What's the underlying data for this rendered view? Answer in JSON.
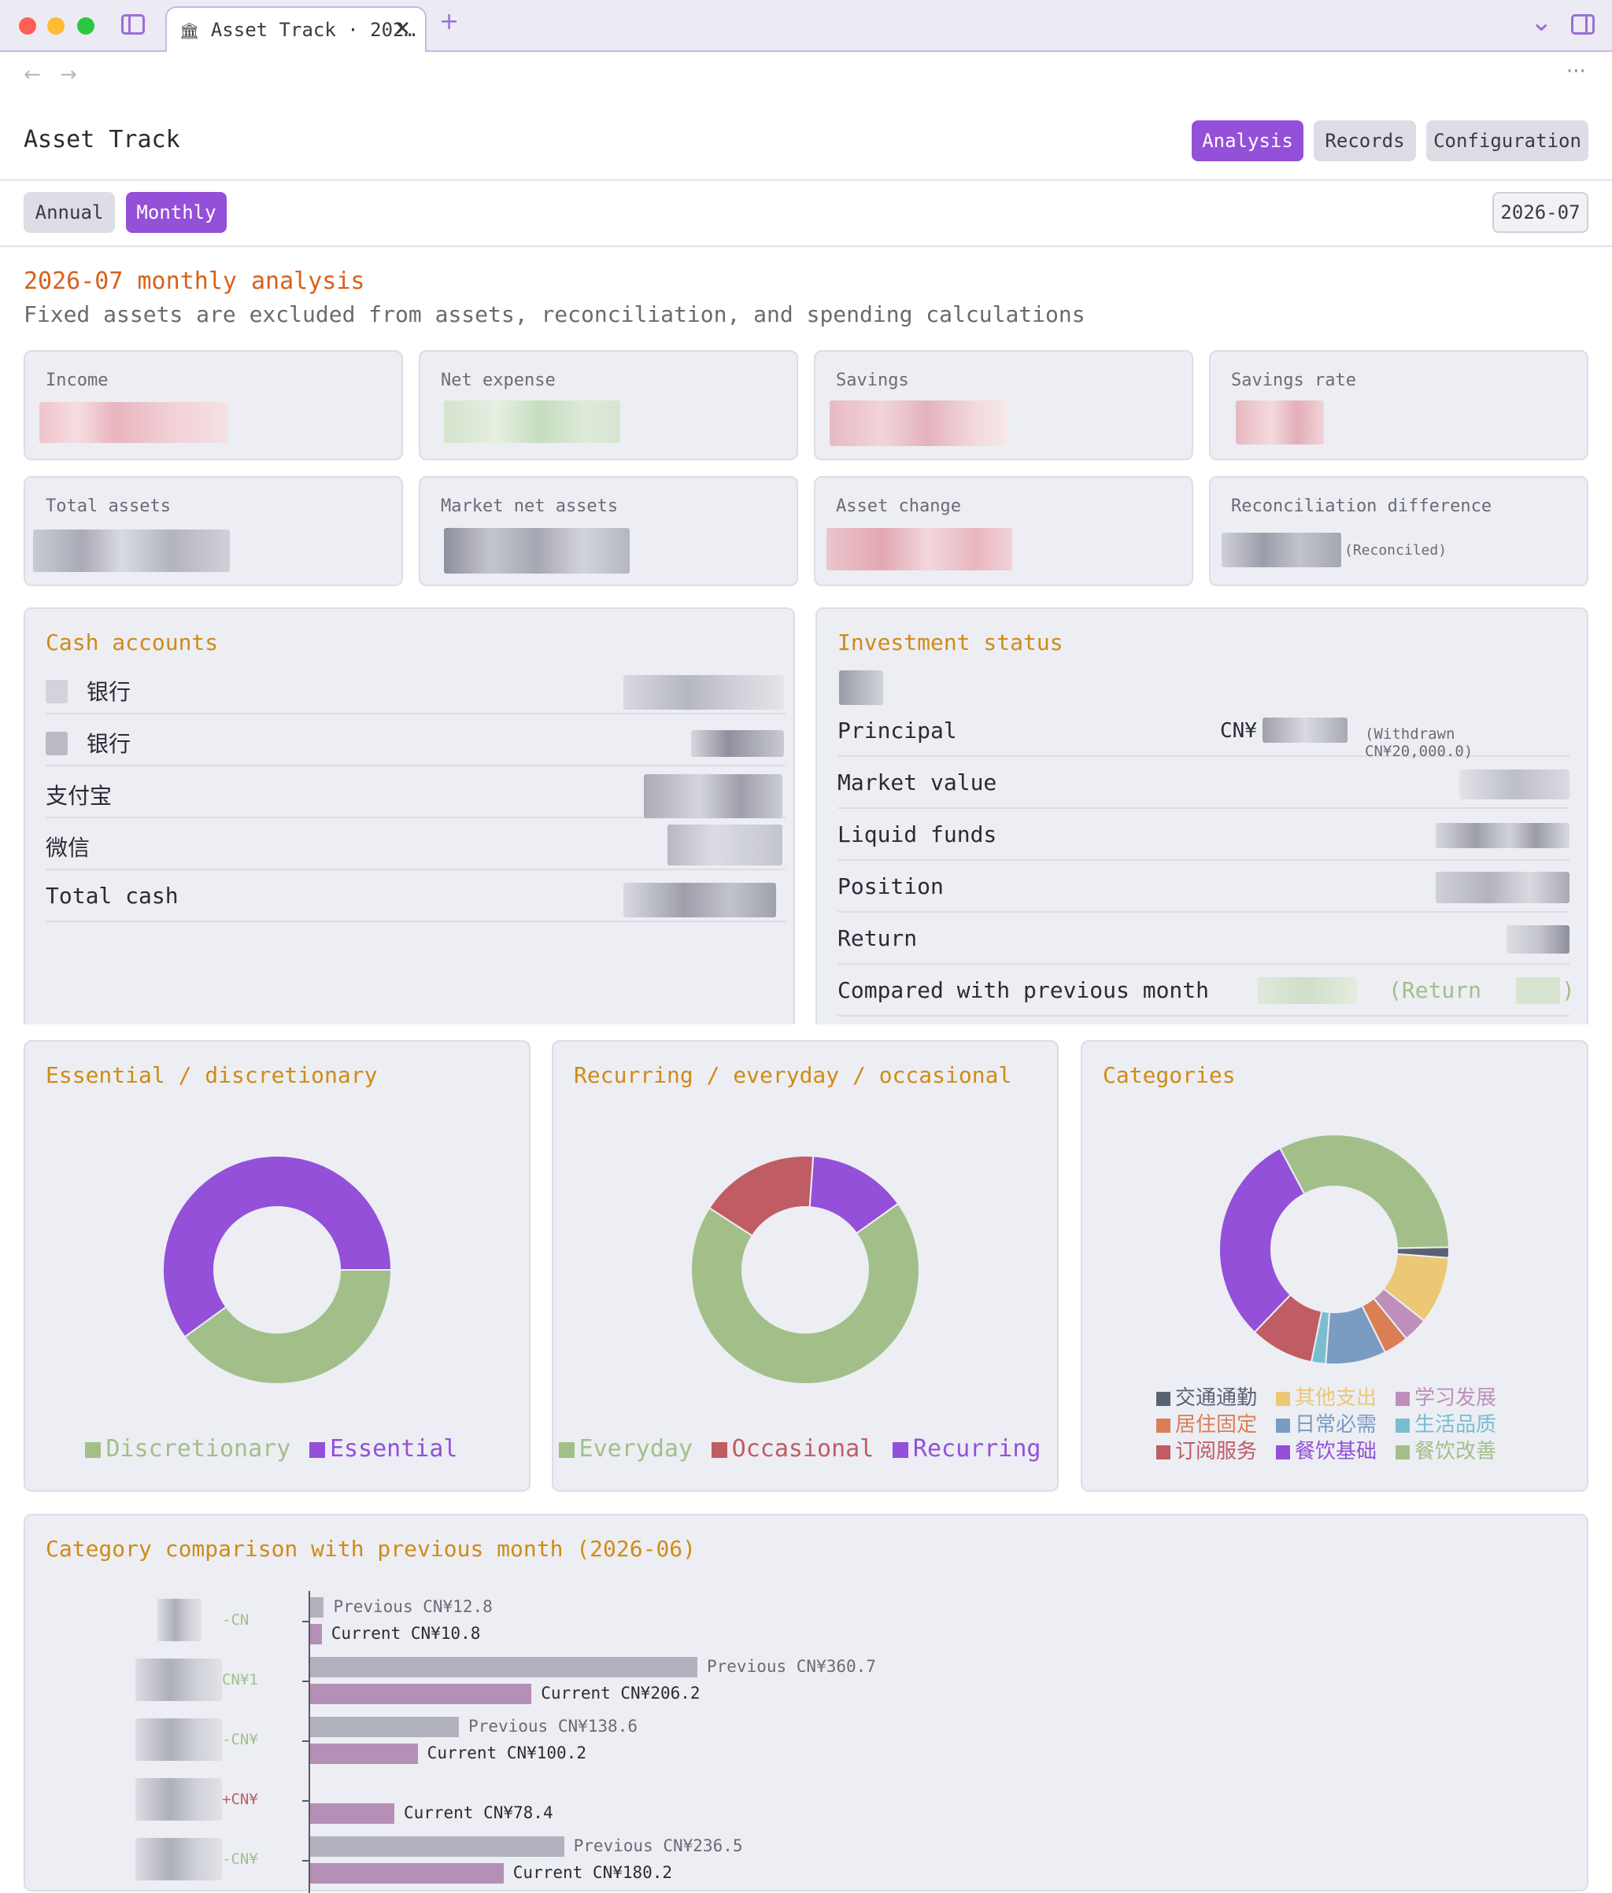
{
  "browser": {
    "tab_title": "Asset Track · 202…",
    "close_glyph": "✕",
    "new_tab_glyph": "+",
    "back_glyph": "←",
    "forward_glyph": "→",
    "more_glyph": "···",
    "dropdown_glyph": "⌄",
    "tab_icon_glyph": "🏛"
  },
  "app": {
    "title": "Asset Track",
    "nav": {
      "analysis": "Analysis",
      "records": "Records",
      "configuration": "Configuration"
    },
    "period_tabs": {
      "annual": "Annual",
      "monthly": "Monthly"
    },
    "selected_month": "2026-07"
  },
  "analysis": {
    "title": "2026-07 monthly analysis",
    "subtitle": "Fixed assets are excluded from assets, reconciliation, and spending calculations"
  },
  "stats": {
    "income": "Income",
    "net_expense": "Net expense",
    "savings": "Savings",
    "savings_rate": "Savings rate",
    "total_assets": "Total assets",
    "market_net_assets": "Market net assets",
    "asset_change": "Asset change",
    "reconciliation_difference": "Reconciliation difference",
    "reconciled_note": "(Reconciled)"
  },
  "cash": {
    "title": "Cash accounts",
    "rows": [
      "银行",
      "银行",
      "支付宝",
      "微信",
      "Total cash"
    ]
  },
  "investment": {
    "title": "Investment status",
    "principal": "Principal",
    "principal_prefix": "CN¥",
    "withdrawn_note": "(Withdrawn CN¥20,000.0)",
    "market_value": "Market value",
    "liquid_funds": "Liquid funds",
    "position": "Position",
    "return": "Return",
    "compared": "Compared with previous month",
    "compared_open": "(Return",
    "compared_close": ")"
  },
  "colors": {
    "purple": "#9450d8",
    "green": "#a2bf8a",
    "red": "#c05c63",
    "gold": "#d08b14",
    "orange_title": "#d9601a"
  },
  "chart_data": [
    {
      "type": "pie",
      "title": "Essential / discretionary",
      "categories": [
        "Discretionary",
        "Essential"
      ],
      "values": [
        40,
        60
      ],
      "colors": [
        "#a2bf8a",
        "#9450d8"
      ]
    },
    {
      "type": "pie",
      "title": "Recurring / everyday / occasional",
      "categories": [
        "Everyday",
        "Occasional",
        "Recurring"
      ],
      "values": [
        69,
        17,
        14
      ],
      "colors": [
        "#a2bf8a",
        "#c05c63",
        "#9450d8"
      ]
    },
    {
      "type": "pie",
      "title": "Categories",
      "categories": [
        "交通通勤",
        "其他支出",
        "学习发展",
        "居住固定",
        "日常必需",
        "生活品质",
        "订阅服务",
        "餐饮基础",
        "餐饮改善"
      ],
      "values": [
        1.5,
        9.5,
        3.5,
        3.5,
        8.5,
        2,
        9,
        30,
        32.5
      ],
      "colors": [
        "#5a6173",
        "#ecc776",
        "#bf8fbb",
        "#db7e56",
        "#7b9cc2",
        "#7bbdd0",
        "#c05c63",
        "#9450d8",
        "#a2bf8a"
      ]
    },
    {
      "type": "bar",
      "title": "Category comparison with previous month (2026-06)",
      "series": [
        {
          "name": "Previous",
          "values": [
            12.8,
            360.7,
            138.6,
            0,
            236.5
          ]
        },
        {
          "name": "Current",
          "values": [
            10.8,
            206.2,
            100.2,
            78.4,
            180.2
          ]
        }
      ],
      "diff_prefixes": [
        "-CN",
        "CN¥1",
        "-CN¥",
        "+CN¥",
        "-CN¥"
      ],
      "previous_labels": [
        "Previous CN¥12.8",
        "Previous CN¥360.7",
        "Previous CN¥138.6",
        "",
        "Previous CN¥236.5"
      ],
      "current_labels": [
        "Current CN¥10.8",
        "Current CN¥206.2",
        "Current CN¥100.2",
        "Current CN¥78.4",
        "Current CN¥180.2"
      ],
      "colors": {
        "previous": "#b1b2bd",
        "current": "#b58fb6"
      }
    }
  ]
}
